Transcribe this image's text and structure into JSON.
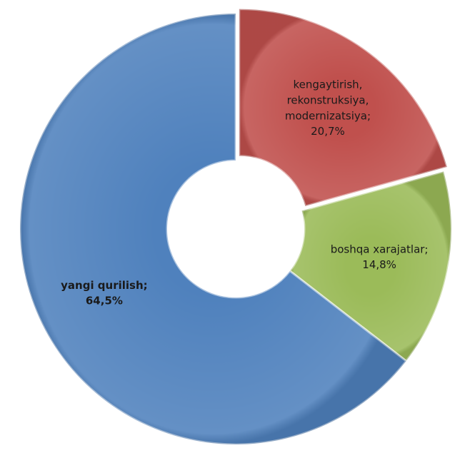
{
  "chart_data": {
    "type": "donut",
    "categories": [
      "kengaytirish, rekonstruksiya, modernizatsiya;",
      "boshqa xarajatlar;",
      "yangi qurilish;"
    ],
    "values": [
      20.7,
      14.8,
      64.5
    ],
    "value_labels": [
      "20,7%",
      "14,8%",
      "64,5%"
    ],
    "colors": [
      "#c0504d",
      "#9bbb59",
      "#4f81bd"
    ]
  }
}
